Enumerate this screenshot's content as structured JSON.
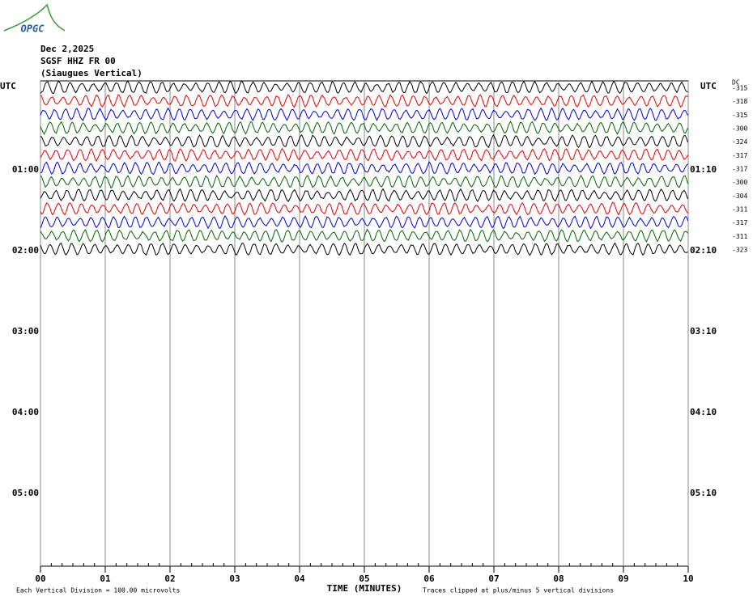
{
  "chart_data": {
    "type": "helicorder",
    "logo": "OPGC",
    "title_lines": [
      "Dec 2,2025",
      "SGSF HHZ FR 00",
      "(Siaugues Vertical)"
    ],
    "y_label": "UTC",
    "y2_label": "UTC",
    "dc_label": "DC",
    "xlabel": "TIME (MINUTES)",
    "footer_left": "Each Vertical Division =  100.00 microvolts",
    "footer_right": "Traces clipped at plus/minus 5 vertical divisions",
    "xlim": [
      0,
      10
    ],
    "xticks": [
      {
        "value": 0,
        "label": "00"
      },
      {
        "value": 1,
        "label": "01"
      },
      {
        "value": 2,
        "label": "02"
      },
      {
        "value": 3,
        "label": "03"
      },
      {
        "value": 4,
        "label": "04"
      },
      {
        "value": 5,
        "label": "05"
      },
      {
        "value": 6,
        "label": "06"
      },
      {
        "value": 7,
        "label": "07"
      },
      {
        "value": 8,
        "label": "08"
      },
      {
        "value": 9,
        "label": "09"
      },
      {
        "value": 10,
        "label": "10"
      }
    ],
    "ylim": [
      0,
      6
    ],
    "yticks": [
      {
        "value": 1,
        "label": "01:00"
      },
      {
        "value": 2,
        "label": "02:00"
      },
      {
        "value": 3,
        "label": "03:00"
      },
      {
        "value": 4,
        "label": "04:00"
      },
      {
        "value": 5,
        "label": "05:00"
      }
    ],
    "y2ticks": [
      {
        "value": 1,
        "label": "01:10"
      },
      {
        "value": 2,
        "label": "02:10"
      },
      {
        "value": 3,
        "label": "03:10"
      },
      {
        "value": 4,
        "label": "04:10"
      },
      {
        "value": 5,
        "label": "05:10"
      }
    ],
    "grid": true,
    "traces": [
      {
        "color": "#000000",
        "dc": -315
      },
      {
        "color": "#e00000",
        "dc": -318
      },
      {
        "color": "#0000c8",
        "dc": -315
      },
      {
        "color": "#006400",
        "dc": -300
      },
      {
        "color": "#000000",
        "dc": -324
      },
      {
        "color": "#e00000",
        "dc": -317
      },
      {
        "color": "#0000c8",
        "dc": -317
      },
      {
        "color": "#006400",
        "dc": -300
      },
      {
        "color": "#000000",
        "dc": -304
      },
      {
        "color": "#e00000",
        "dc": -311
      },
      {
        "color": "#0000c8",
        "dc": -317
      },
      {
        "color": "#006400",
        "dc": -311
      },
      {
        "color": "#000000",
        "dc": -323
      }
    ]
  }
}
